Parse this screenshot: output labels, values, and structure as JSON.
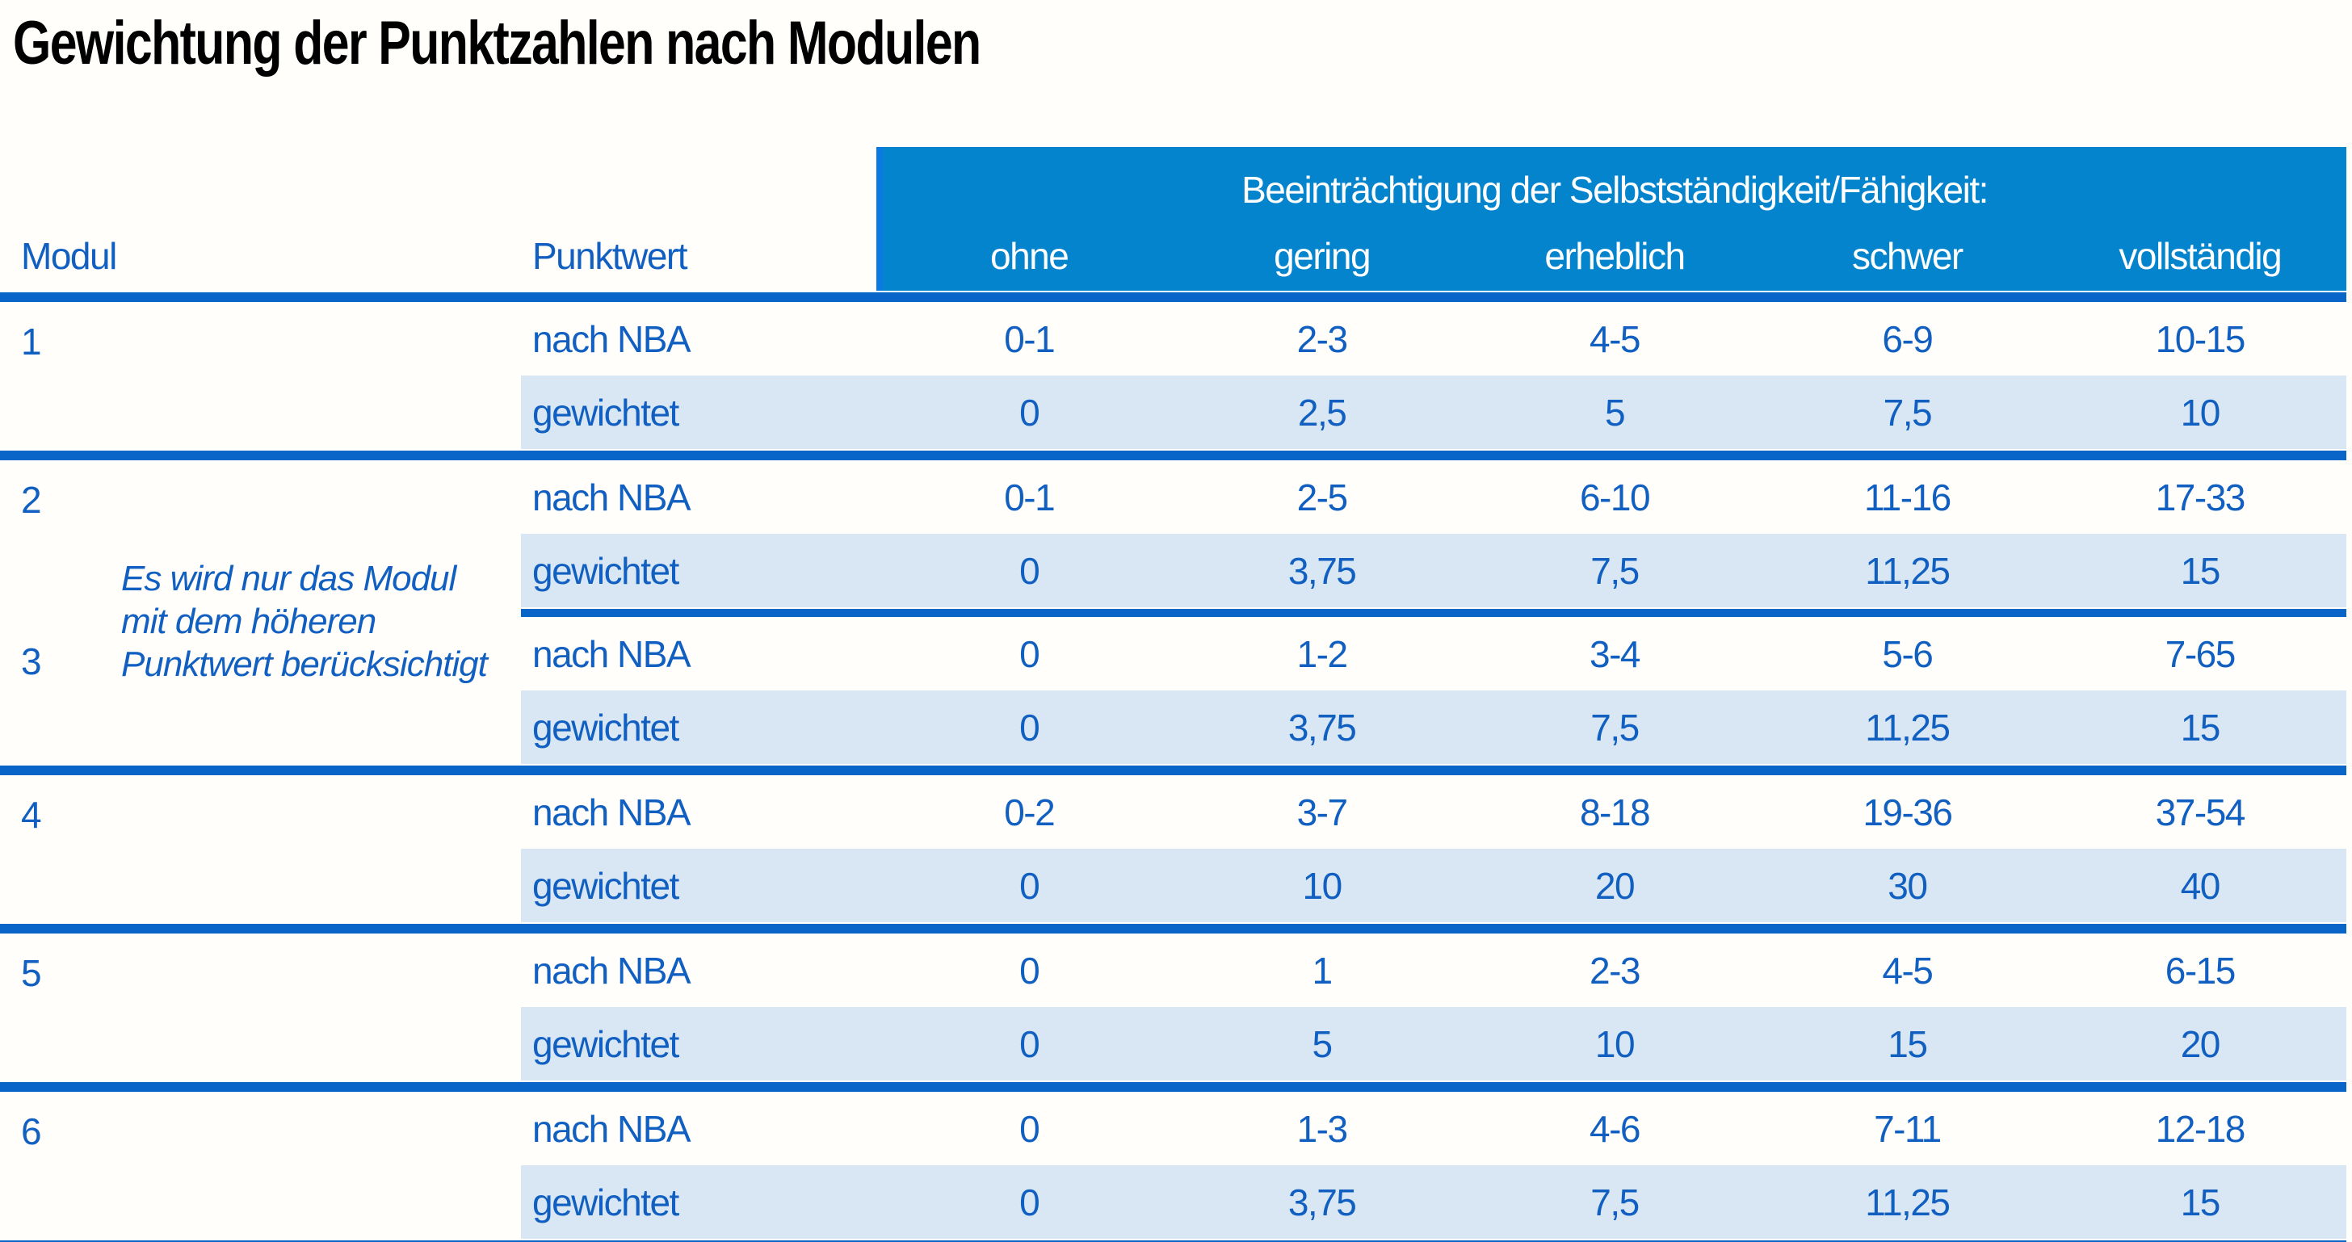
{
  "title": "Gewichtung der Punktzahlen nach Modulen",
  "colors": {
    "band_blue": "#0584ce",
    "band_edge_blue": "#0c79e2",
    "rule_blue": "#0a65c8",
    "row_alt_blue": "#d8e7f3",
    "text_blue": "#1160c1",
    "band_text": "#ffffff",
    "title_text": "#000000"
  },
  "table": {
    "modul_header": "Modul",
    "punktwert_header": "Punktwert",
    "band_title": "Beeinträchtigung der Selbstständigkeit/Fähigkeit:",
    "severity_levels": [
      "ohne",
      "gering",
      "erheblich",
      "schwer",
      "vollständig"
    ],
    "row_labels": {
      "nach_nba": "nach NBA",
      "gewichtet": "gewichtet"
    },
    "note": {
      "line1": "Es wird nur das Modul",
      "line2": "mit dem höheren",
      "line3": "Punktwert berücksichtigt"
    },
    "modules": [
      {
        "number": "1",
        "nach_nba": [
          "0-1",
          "2-3",
          "4-5",
          "6-9",
          "10-15"
        ],
        "gewichtet": [
          "0",
          "2,5",
          "5",
          "7,5",
          "10"
        ]
      },
      {
        "number": "2",
        "nach_nba": [
          "0-1",
          "2-5",
          "6-10",
          "11-16",
          "17-33"
        ],
        "gewichtet": [
          "0",
          "3,75",
          "7,5",
          "11,25",
          "15"
        ]
      },
      {
        "number": "3",
        "nach_nba": [
          "0",
          "1-2",
          "3-4",
          "5-6",
          "7-65"
        ],
        "gewichtet": [
          "0",
          "3,75",
          "7,5",
          "11,25",
          "15"
        ]
      },
      {
        "number": "4",
        "nach_nba": [
          "0-2",
          "3-7",
          "8-18",
          "19-36",
          "37-54"
        ],
        "gewichtet": [
          "0",
          "10",
          "20",
          "30",
          "40"
        ]
      },
      {
        "number": "5",
        "nach_nba": [
          "0",
          "1",
          "2-3",
          "4-5",
          "6-15"
        ],
        "gewichtet": [
          "0",
          "5",
          "10",
          "15",
          "20"
        ]
      },
      {
        "number": "6",
        "nach_nba": [
          "0",
          "1-3",
          "4-6",
          "7-11",
          "12-18"
        ],
        "gewichtet": [
          "0",
          "3,75",
          "7,5",
          "11,25",
          "15"
        ]
      }
    ]
  }
}
